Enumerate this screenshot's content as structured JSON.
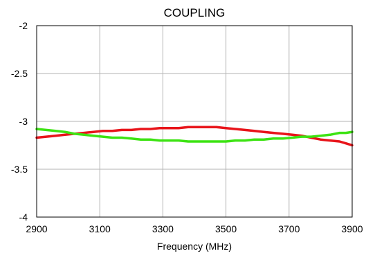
{
  "chart_data": {
    "type": "line",
    "title": "COUPLING",
    "xlabel": "Frequency (MHz)",
    "ylabel": "",
    "xlim": [
      2900,
      3900
    ],
    "ylim": [
      -4,
      -2
    ],
    "xticks": [
      "2900",
      "3100",
      "3300",
      "3500",
      "3700",
      "3900"
    ],
    "xtick_values": [
      2900,
      3100,
      3300,
      3500,
      3700,
      3900
    ],
    "yticks": [
      "-2",
      "-2.5",
      "-3",
      "-3.5",
      "-4"
    ],
    "ytick_values": [
      -2,
      -2.5,
      -3,
      -3.5,
      -4
    ],
    "grid": true,
    "legend": "none",
    "series": [
      {
        "color": "#e8141a",
        "x": [
          2900,
          2930,
          2960,
          2990,
          3020,
          3050,
          3080,
          3110,
          3140,
          3170,
          3200,
          3230,
          3260,
          3290,
          3320,
          3350,
          3380,
          3410,
          3440,
          3470,
          3500,
          3530,
          3560,
          3590,
          3620,
          3650,
          3680,
          3710,
          3740,
          3770,
          3800,
          3830,
          3860,
          3880,
          3900
        ],
        "y": [
          -3.17,
          -3.16,
          -3.15,
          -3.14,
          -3.13,
          -3.12,
          -3.11,
          -3.1,
          -3.1,
          -3.09,
          -3.09,
          -3.08,
          -3.08,
          -3.07,
          -3.07,
          -3.07,
          -3.06,
          -3.06,
          -3.06,
          -3.06,
          -3.07,
          -3.08,
          -3.09,
          -3.1,
          -3.11,
          -3.12,
          -3.13,
          -3.14,
          -3.15,
          -3.17,
          -3.19,
          -3.2,
          -3.21,
          -3.23,
          -3.25
        ]
      },
      {
        "color": "#3ce312",
        "x": [
          2900,
          2930,
          2960,
          2990,
          3020,
          3050,
          3080,
          3110,
          3140,
          3170,
          3200,
          3230,
          3260,
          3290,
          3320,
          3350,
          3380,
          3410,
          3440,
          3470,
          3500,
          3530,
          3560,
          3590,
          3620,
          3650,
          3680,
          3710,
          3740,
          3770,
          3800,
          3830,
          3860,
          3880,
          3900
        ],
        "y": [
          -3.08,
          -3.09,
          -3.1,
          -3.11,
          -3.13,
          -3.14,
          -3.15,
          -3.16,
          -3.17,
          -3.17,
          -3.18,
          -3.19,
          -3.19,
          -3.2,
          -3.2,
          -3.2,
          -3.21,
          -3.21,
          -3.21,
          -3.21,
          -3.21,
          -3.2,
          -3.2,
          -3.19,
          -3.19,
          -3.18,
          -3.18,
          -3.17,
          -3.16,
          -3.16,
          -3.15,
          -3.14,
          -3.12,
          -3.12,
          -3.11
        ]
      }
    ]
  }
}
